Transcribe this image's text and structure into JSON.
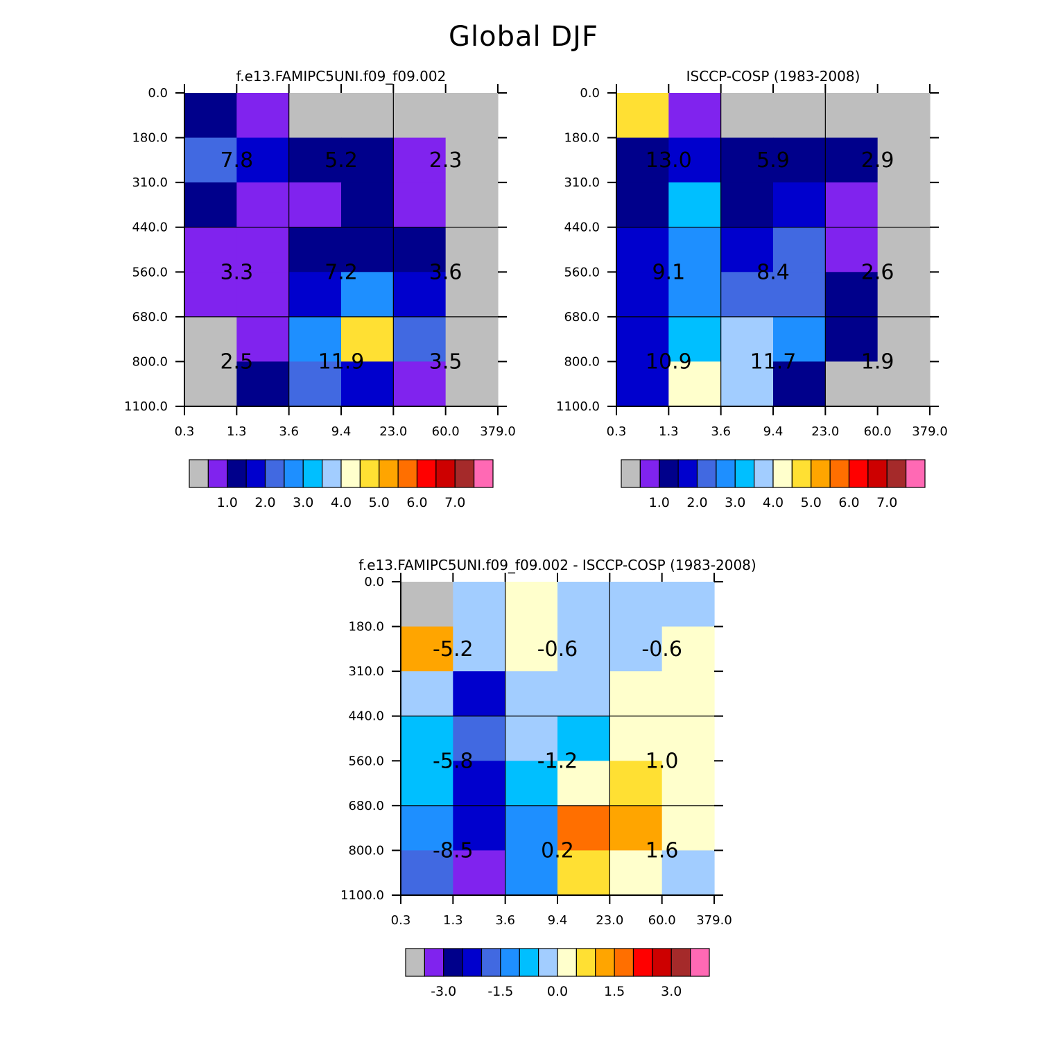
{
  "title": "Global DJF",
  "colors": {
    "gray": "#BEBEBE",
    "purple": "#8023EE",
    "navy": "#00008B",
    "blue": "#0000CD",
    "royal": "#4169E1",
    "dodger": "#1E8FFF",
    "deepsky": "#00BFFF",
    "lightblue": "#A2CDFF",
    "cream": "#FFFFCC",
    "yellow": "#FFE033",
    "orange": "#FFA500",
    "darkorange": "#FF6F00",
    "red": "#FF0000",
    "crimson": "#CD0000",
    "brown": "#A52A2A",
    "pink": "#FF69B4"
  },
  "chart_data": [
    {
      "type": "heatmap",
      "title": "f.e13.FAMIPC5UNI.f09_f09.002",
      "x_ticks": [
        "0.3",
        "1.3",
        "3.6",
        "9.4",
        "23.0",
        "60.0",
        "379.0"
      ],
      "y_ticks": [
        "0.0",
        "180.0",
        "310.0",
        "440.0",
        "560.0",
        "680.0",
        "800.0",
        "1100.0"
      ],
      "cells": [
        [
          "navy",
          "purple",
          "gray",
          "gray",
          "gray",
          "gray"
        ],
        [
          "royal",
          "blue",
          "navy",
          "navy",
          "purple",
          "gray"
        ],
        [
          "navy",
          "purple",
          "purple",
          "navy",
          "purple",
          "gray"
        ],
        [
          "purple",
          "purple",
          "navy",
          "navy",
          "navy",
          "gray"
        ],
        [
          "purple",
          "purple",
          "blue",
          "dodger",
          "blue",
          "gray"
        ],
        [
          "gray",
          "purple",
          "dodger",
          "yellow",
          "royal",
          "gray"
        ],
        [
          "gray",
          "navy",
          "royal",
          "blue",
          "purple",
          "gray"
        ]
      ],
      "group_labels": [
        [
          "7.8",
          "5.2",
          "2.3"
        ],
        [
          "3.3",
          "7.2",
          "3.6"
        ],
        [
          "2.5",
          "11.9",
          "3.5"
        ]
      ],
      "colorbar": {
        "colors": [
          "gray",
          "purple",
          "navy",
          "blue",
          "royal",
          "dodger",
          "deepsky",
          "lightblue",
          "cream",
          "yellow",
          "orange",
          "darkorange",
          "red",
          "crimson",
          "brown",
          "pink"
        ],
        "labels": [
          "1.0",
          "2.0",
          "3.0",
          "4.0",
          "5.0",
          "6.0",
          "7.0"
        ]
      }
    },
    {
      "type": "heatmap",
      "title": "ISCCP-COSP (1983-2008)",
      "x_ticks": [
        "0.3",
        "1.3",
        "3.6",
        "9.4",
        "23.0",
        "60.0",
        "379.0"
      ],
      "y_ticks": [
        "0.0",
        "180.0",
        "310.0",
        "440.0",
        "560.0",
        "680.0",
        "800.0",
        "1100.0"
      ],
      "cells": [
        [
          "yellow",
          "purple",
          "gray",
          "gray",
          "gray",
          "gray"
        ],
        [
          "navy",
          "blue",
          "navy",
          "navy",
          "navy",
          "gray"
        ],
        [
          "navy",
          "deepsky",
          "navy",
          "blue",
          "purple",
          "gray"
        ],
        [
          "blue",
          "dodger",
          "blue",
          "royal",
          "purple",
          "gray"
        ],
        [
          "blue",
          "dodger",
          "royal",
          "royal",
          "navy",
          "gray"
        ],
        [
          "blue",
          "deepsky",
          "lightblue",
          "dodger",
          "navy",
          "gray"
        ],
        [
          "blue",
          "cream",
          "lightblue",
          "navy",
          "gray",
          "gray"
        ]
      ],
      "group_labels": [
        [
          "13.0",
          "5.9",
          "2.9"
        ],
        [
          "9.1",
          "8.4",
          "2.6"
        ],
        [
          "10.9",
          "11.7",
          "1.9"
        ]
      ],
      "colorbar": {
        "colors": [
          "gray",
          "purple",
          "navy",
          "blue",
          "royal",
          "dodger",
          "deepsky",
          "lightblue",
          "cream",
          "yellow",
          "orange",
          "darkorange",
          "red",
          "crimson",
          "brown",
          "pink"
        ],
        "labels": [
          "1.0",
          "2.0",
          "3.0",
          "4.0",
          "5.0",
          "6.0",
          "7.0"
        ]
      }
    },
    {
      "type": "heatmap",
      "title": "f.e13.FAMIPC5UNI.f09_f09.002 - ISCCP-COSP (1983-2008)",
      "x_ticks": [
        "0.3",
        "1.3",
        "3.6",
        "9.4",
        "23.0",
        "60.0",
        "379.0"
      ],
      "y_ticks": [
        "0.0",
        "180.0",
        "310.0",
        "440.0",
        "560.0",
        "680.0",
        "800.0",
        "1100.0"
      ],
      "cells": [
        [
          "gray",
          "lightblue",
          "cream",
          "lightblue",
          "lightblue",
          "lightblue"
        ],
        [
          "orange",
          "lightblue",
          "cream",
          "lightblue",
          "lightblue",
          "cream"
        ],
        [
          "lightblue",
          "blue",
          "lightblue",
          "lightblue",
          "cream",
          "cream"
        ],
        [
          "deepsky",
          "royal",
          "lightblue",
          "deepsky",
          "cream",
          "cream"
        ],
        [
          "deepsky",
          "blue",
          "deepsky",
          "cream",
          "yellow",
          "cream"
        ],
        [
          "dodger",
          "blue",
          "dodger",
          "darkorange",
          "orange",
          "cream"
        ],
        [
          "royal",
          "purple",
          "dodger",
          "yellow",
          "cream",
          "lightblue"
        ]
      ],
      "group_labels": [
        [
          "-5.2",
          "-0.6",
          "-0.6"
        ],
        [
          "-5.8",
          "-1.2",
          "1.0"
        ],
        [
          "-8.5",
          "0.2",
          "1.6"
        ]
      ],
      "colorbar": {
        "colors": [
          "gray",
          "purple",
          "navy",
          "blue",
          "royal",
          "dodger",
          "deepsky",
          "lightblue",
          "cream",
          "yellow",
          "orange",
          "darkorange",
          "red",
          "crimson",
          "brown",
          "pink"
        ],
        "labels": [
          "-3.0",
          "-1.5",
          "0.0",
          "1.5",
          "3.0"
        ]
      }
    }
  ]
}
